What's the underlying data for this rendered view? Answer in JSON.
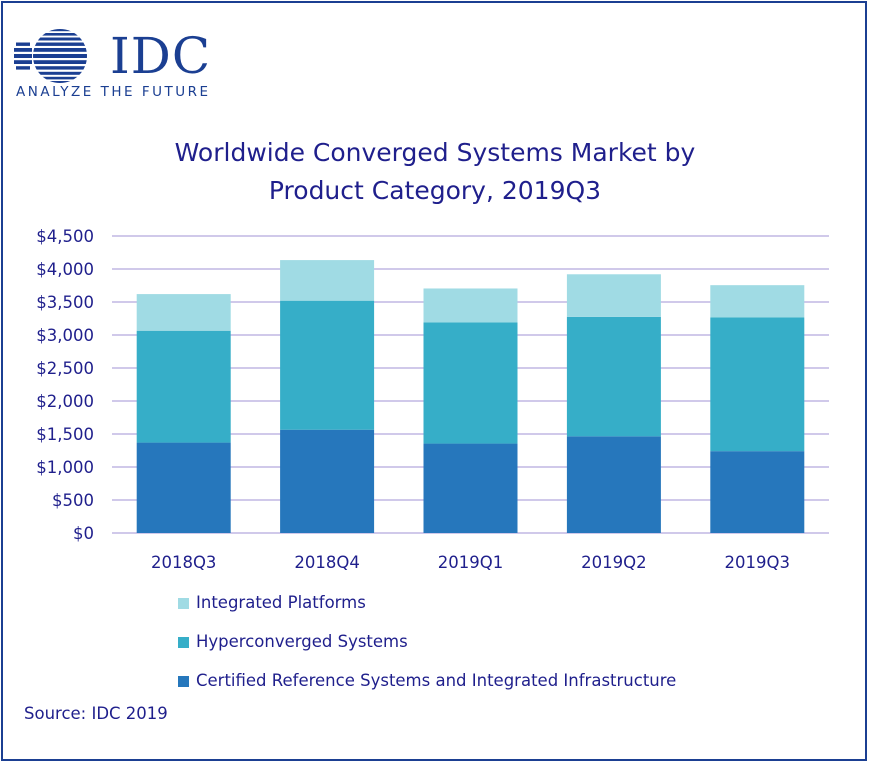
{
  "logo": {
    "name": "IDC",
    "tagline": "ANALYZE THE FUTURE",
    "color": "#1b3f92"
  },
  "chart_data": {
    "type": "bar",
    "stacked": true,
    "title_lines": [
      "Worldwide Converged Systems Market by",
      "Product Category, 2019Q3"
    ],
    "categories": [
      "2018Q3",
      "2018Q4",
      "2019Q1",
      "2019Q2",
      "2019Q3"
    ],
    "series": [
      {
        "name": "Certified Reference Systems and Integrated Infrastructure",
        "color": "#2677bc",
        "values": [
          1370,
          1565,
          1355,
          1465,
          1240
        ]
      },
      {
        "name": "Hyperconverged Systems",
        "color": "#36aec8",
        "values": [
          1695,
          1955,
          1835,
          1810,
          2025
        ]
      },
      {
        "name": "Integrated Platforms",
        "color": "#a0dbe4",
        "values": [
          555,
          615,
          515,
          645,
          490
        ]
      }
    ],
    "ylim": [
      0,
      4500
    ],
    "yticks": [
      "$0",
      "$500",
      "$1,000",
      "$1,500",
      "$2,000",
      "$2,500",
      "$3,000",
      "$3,500",
      "$4,000",
      "$4,500"
    ],
    "grid": true,
    "legend_position": "bottom",
    "legend_order": [
      "Integrated Platforms",
      "Hyperconverged Systems",
      "Certified Reference Systems and Integrated Infrastructure"
    ],
    "gridline_color": "#b3a9de"
  },
  "source": "Source: IDC 2019"
}
